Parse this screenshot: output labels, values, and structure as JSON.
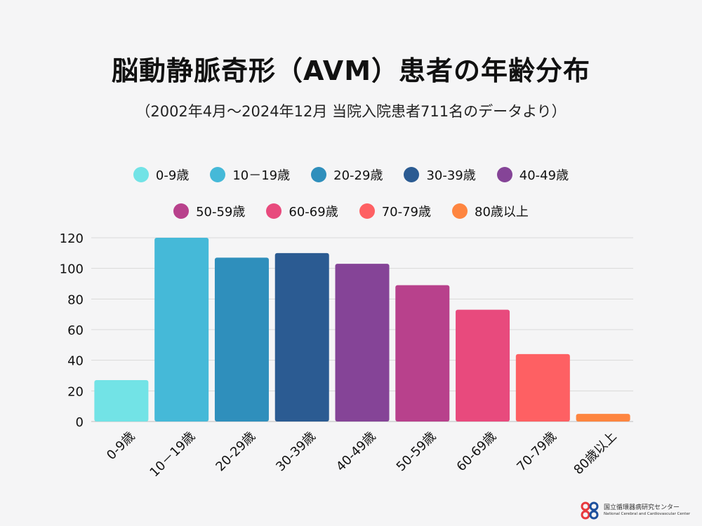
{
  "header": {
    "title": "脳動静脈奇形（AVM）患者の年齢分布",
    "subtitle": "（2002年4月〜2024年12月 当院入院患者711名のデータより）"
  },
  "legend": [
    {
      "label": "0-9歳",
      "color": "#72e3e6"
    },
    {
      "label": "10－19歳",
      "color": "#45b9d8"
    },
    {
      "label": "20-29歳",
      "color": "#2f8fbc"
    },
    {
      "label": "30-39歳",
      "color": "#2b5b92"
    },
    {
      "label": "40-49歳",
      "color": "#854497"
    },
    {
      "label": "50-59歳",
      "color": "#b8418c"
    },
    {
      "label": "60-69歳",
      "color": "#e84a7d"
    },
    {
      "label": "70-79歳",
      "color": "#fe6063"
    },
    {
      "label": "80歳以上",
      "color": "#fe8540"
    }
  ],
  "chart_data": {
    "type": "bar",
    "categories": [
      "0-9歳",
      "10－19歳",
      "20-29歳",
      "30-39歳",
      "40-49歳",
      "50-59歳",
      "60-69歳",
      "70-79歳",
      "80歳以上"
    ],
    "values": [
      27,
      120,
      107,
      110,
      103,
      89,
      73,
      44,
      5
    ],
    "colors": [
      "#72e3e6",
      "#45b9d8",
      "#2f8fbc",
      "#2b5b92",
      "#854497",
      "#b8418c",
      "#e84a7d",
      "#fe6063",
      "#fe8540"
    ],
    "ylim": [
      0,
      120
    ],
    "yticks": [
      0,
      20,
      40,
      60,
      80,
      100,
      120
    ],
    "grid": true,
    "legend_position": "top"
  },
  "logo": {
    "name_jp": "国立循環器病研究センター",
    "name_en": "National Cerebral and Cardiovascular Center"
  }
}
